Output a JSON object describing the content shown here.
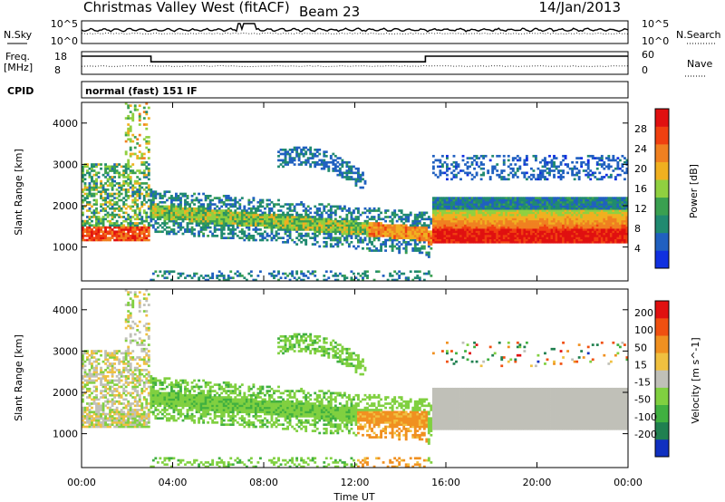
{
  "header": {
    "title": "Christmas Valley West (fitACF)",
    "beam": "Beam 23",
    "date": "14/Jan/2013"
  },
  "panels": {
    "nsky": {
      "label": "N.Sky",
      "left_ticks": [
        "10^5",
        "10^0"
      ],
      "right_label": "N.Search",
      "right_ticks": [
        "10^5",
        "10^0"
      ]
    },
    "freq": {
      "label_line1": "Freq.",
      "label_line2": "[MHz]",
      "left_ticks": [
        "18",
        "8"
      ],
      "right_label": "Nave",
      "right_ticks": [
        "60",
        "0"
      ]
    },
    "cpid": {
      "label": "CPID",
      "value": "normal (fast) 151 IF"
    }
  },
  "colors": {
    "power": [
      "#1030e0",
      "#2060c0",
      "#208a70",
      "#3aa050",
      "#90d040",
      "#f0b020",
      "#f08020",
      "#f04010",
      "#e01010"
    ],
    "velocity": [
      "#e01010",
      "#f05010",
      "#f09020",
      "#f0c040",
      "#c0c0b8",
      "#80d040",
      "#40b040",
      "#208050",
      "#1030c0"
    ]
  },
  "chart_data": [
    {
      "type": "heatmap",
      "quantity": "Power",
      "ylabel": "Slant Range [km]",
      "xlabel": "",
      "yticks": [
        "1000",
        "2000",
        "3000",
        "4000"
      ],
      "xlim_hours": [
        0,
        24
      ],
      "ylim_km": [
        180,
        4500
      ],
      "colorbar": {
        "label": "Power [dB]",
        "ticks": [
          "4",
          "8",
          "12",
          "16",
          "20",
          "24",
          "28"
        ],
        "range": [
          0,
          32
        ]
      }
    },
    {
      "type": "heatmap",
      "quantity": "Velocity",
      "ylabel": "Slant Range [km]",
      "xlabel": "Time UT",
      "xticks": [
        "00:00",
        "04:00",
        "08:00",
        "12:00",
        "16:00",
        "20:00",
        "00:00"
      ],
      "yticks": [
        "1000",
        "2000",
        "3000",
        "4000"
      ],
      "xlim_hours": [
        0,
        24
      ],
      "ylim_km": [
        180,
        4500
      ],
      "colorbar": {
        "label": "Velocity [m s^-1]",
        "ticks": [
          "200",
          "100",
          "50",
          "15",
          "-15",
          "-50",
          "-100",
          "-200"
        ],
        "range": [
          -250,
          250
        ]
      }
    }
  ]
}
